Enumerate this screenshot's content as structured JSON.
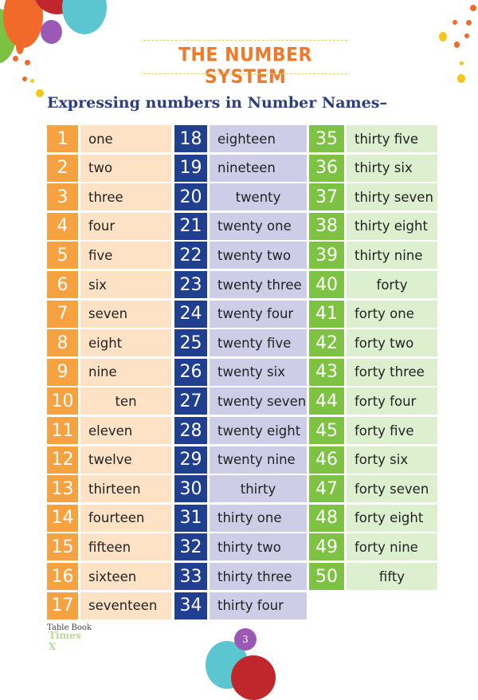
{
  "header": {
    "title": "THE NUMBER SYSTEM",
    "subtitle": "Expressing numbers in Number Names–"
  },
  "colors": {
    "orange": "#f7a240",
    "peach": "#fde2c6",
    "blue": "#213f91",
    "lavender": "#cdcde8",
    "green": "#7dc243",
    "lightgreen": "#dcf0d0"
  },
  "columns": [
    {
      "color": "orange",
      "items": [
        [
          "1",
          "one"
        ],
        [
          "2",
          "two"
        ],
        [
          "3",
          "three"
        ],
        [
          "4",
          "four"
        ],
        [
          "5",
          "five"
        ],
        [
          "6",
          "six"
        ],
        [
          "7",
          "seven"
        ],
        [
          "8",
          "eight"
        ],
        [
          "9",
          "nine"
        ],
        [
          "10",
          "ten"
        ],
        [
          "11",
          "eleven"
        ],
        [
          "12",
          "twelve"
        ],
        [
          "13",
          "thirteen"
        ],
        [
          "14",
          "fourteen"
        ],
        [
          "15",
          "fifteen"
        ],
        [
          "16",
          "sixteen"
        ],
        [
          "17",
          "seventeen"
        ]
      ]
    },
    {
      "color": "blue",
      "items": [
        [
          "18",
          "eighteen"
        ],
        [
          "19",
          "nineteen"
        ],
        [
          "20",
          "twenty"
        ],
        [
          "21",
          "twenty one"
        ],
        [
          "22",
          "twenty two"
        ],
        [
          "23",
          "twenty three"
        ],
        [
          "24",
          "twenty four"
        ],
        [
          "25",
          "twenty five"
        ],
        [
          "26",
          "twenty six"
        ],
        [
          "27",
          "twenty seven"
        ],
        [
          "28",
          "twenty eight"
        ],
        [
          "29",
          "twenty nine"
        ],
        [
          "30",
          "thirty"
        ],
        [
          "31",
          "thirty one"
        ],
        [
          "32",
          "thirty two"
        ],
        [
          "33",
          "thirty three"
        ],
        [
          "34",
          "thirty four"
        ]
      ]
    },
    {
      "color": "green",
      "items": [
        [
          "35",
          "thirty five"
        ],
        [
          "36",
          "thirty six"
        ],
        [
          "37",
          "thirty seven"
        ],
        [
          "38",
          "thirty eight"
        ],
        [
          "39",
          "thirty nine"
        ],
        [
          "40",
          "forty"
        ],
        [
          "41",
          "forty one"
        ],
        [
          "42",
          "forty two"
        ],
        [
          "43",
          "forty three"
        ],
        [
          "44",
          "forty four"
        ],
        [
          "45",
          "forty five"
        ],
        [
          "46",
          "forty six"
        ],
        [
          "47",
          "forty seven"
        ],
        [
          "48",
          "forty eight"
        ],
        [
          "49",
          "forty nine"
        ],
        [
          "50",
          "fifty"
        ]
      ]
    }
  ],
  "footer": {
    "logo_line1": "Table Book",
    "logo_line2": "Times X",
    "page_number": "3"
  }
}
